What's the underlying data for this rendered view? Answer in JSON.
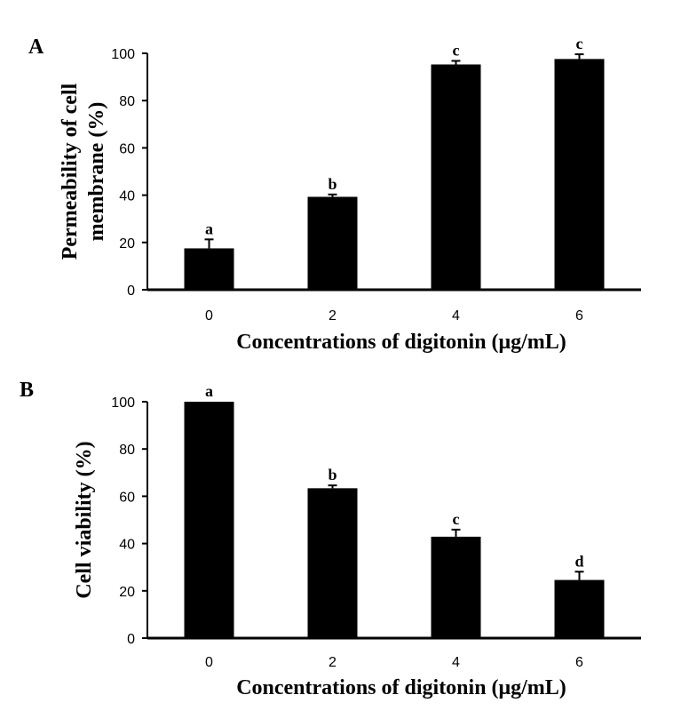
{
  "chart_data": [
    {
      "type": "bar",
      "panel_label": "A",
      "categories": [
        "0",
        "2",
        "4",
        "6"
      ],
      "series": [
        {
          "values": [
            17.5,
            39.3,
            95.3,
            97.6
          ],
          "errors": [
            3.8,
            1.0,
            1.5,
            2.0
          ]
        }
      ],
      "significance_labels": [
        "a",
        "b",
        "c",
        "c"
      ],
      "xlabel": "Concentrations of digitonin (μg/mL)",
      "ylabel": "Permeability of cell membrane (%)",
      "ylabel_lines": [
        "Permeability of cell",
        "membrane (%)"
      ],
      "ylim": [
        0,
        100
      ],
      "yticks": [
        "0",
        "20",
        "40",
        "60",
        "80",
        "100"
      ],
      "bar_color": "#000000",
      "grid": false
    },
    {
      "type": "bar",
      "panel_label": "B",
      "categories": [
        "0",
        "2",
        "4",
        "6"
      ],
      "series": [
        {
          "values": [
            100,
            63.4,
            42.9,
            24.6
          ],
          "errors": [
            0,
            1.2,
            3.0,
            3.5
          ]
        }
      ],
      "significance_labels": [
        "a",
        "b",
        "c",
        "d"
      ],
      "xlabel": "Concentrations of digitonin (μg/mL)",
      "ylabel": "Cell viability (%)",
      "ylabel_lines": [
        "Cell viability (%)"
      ],
      "ylim": [
        0,
        100
      ],
      "yticks": [
        "0",
        "20",
        "40",
        "60",
        "80",
        "100"
      ],
      "bar_color": "#000000",
      "grid": false
    }
  ]
}
